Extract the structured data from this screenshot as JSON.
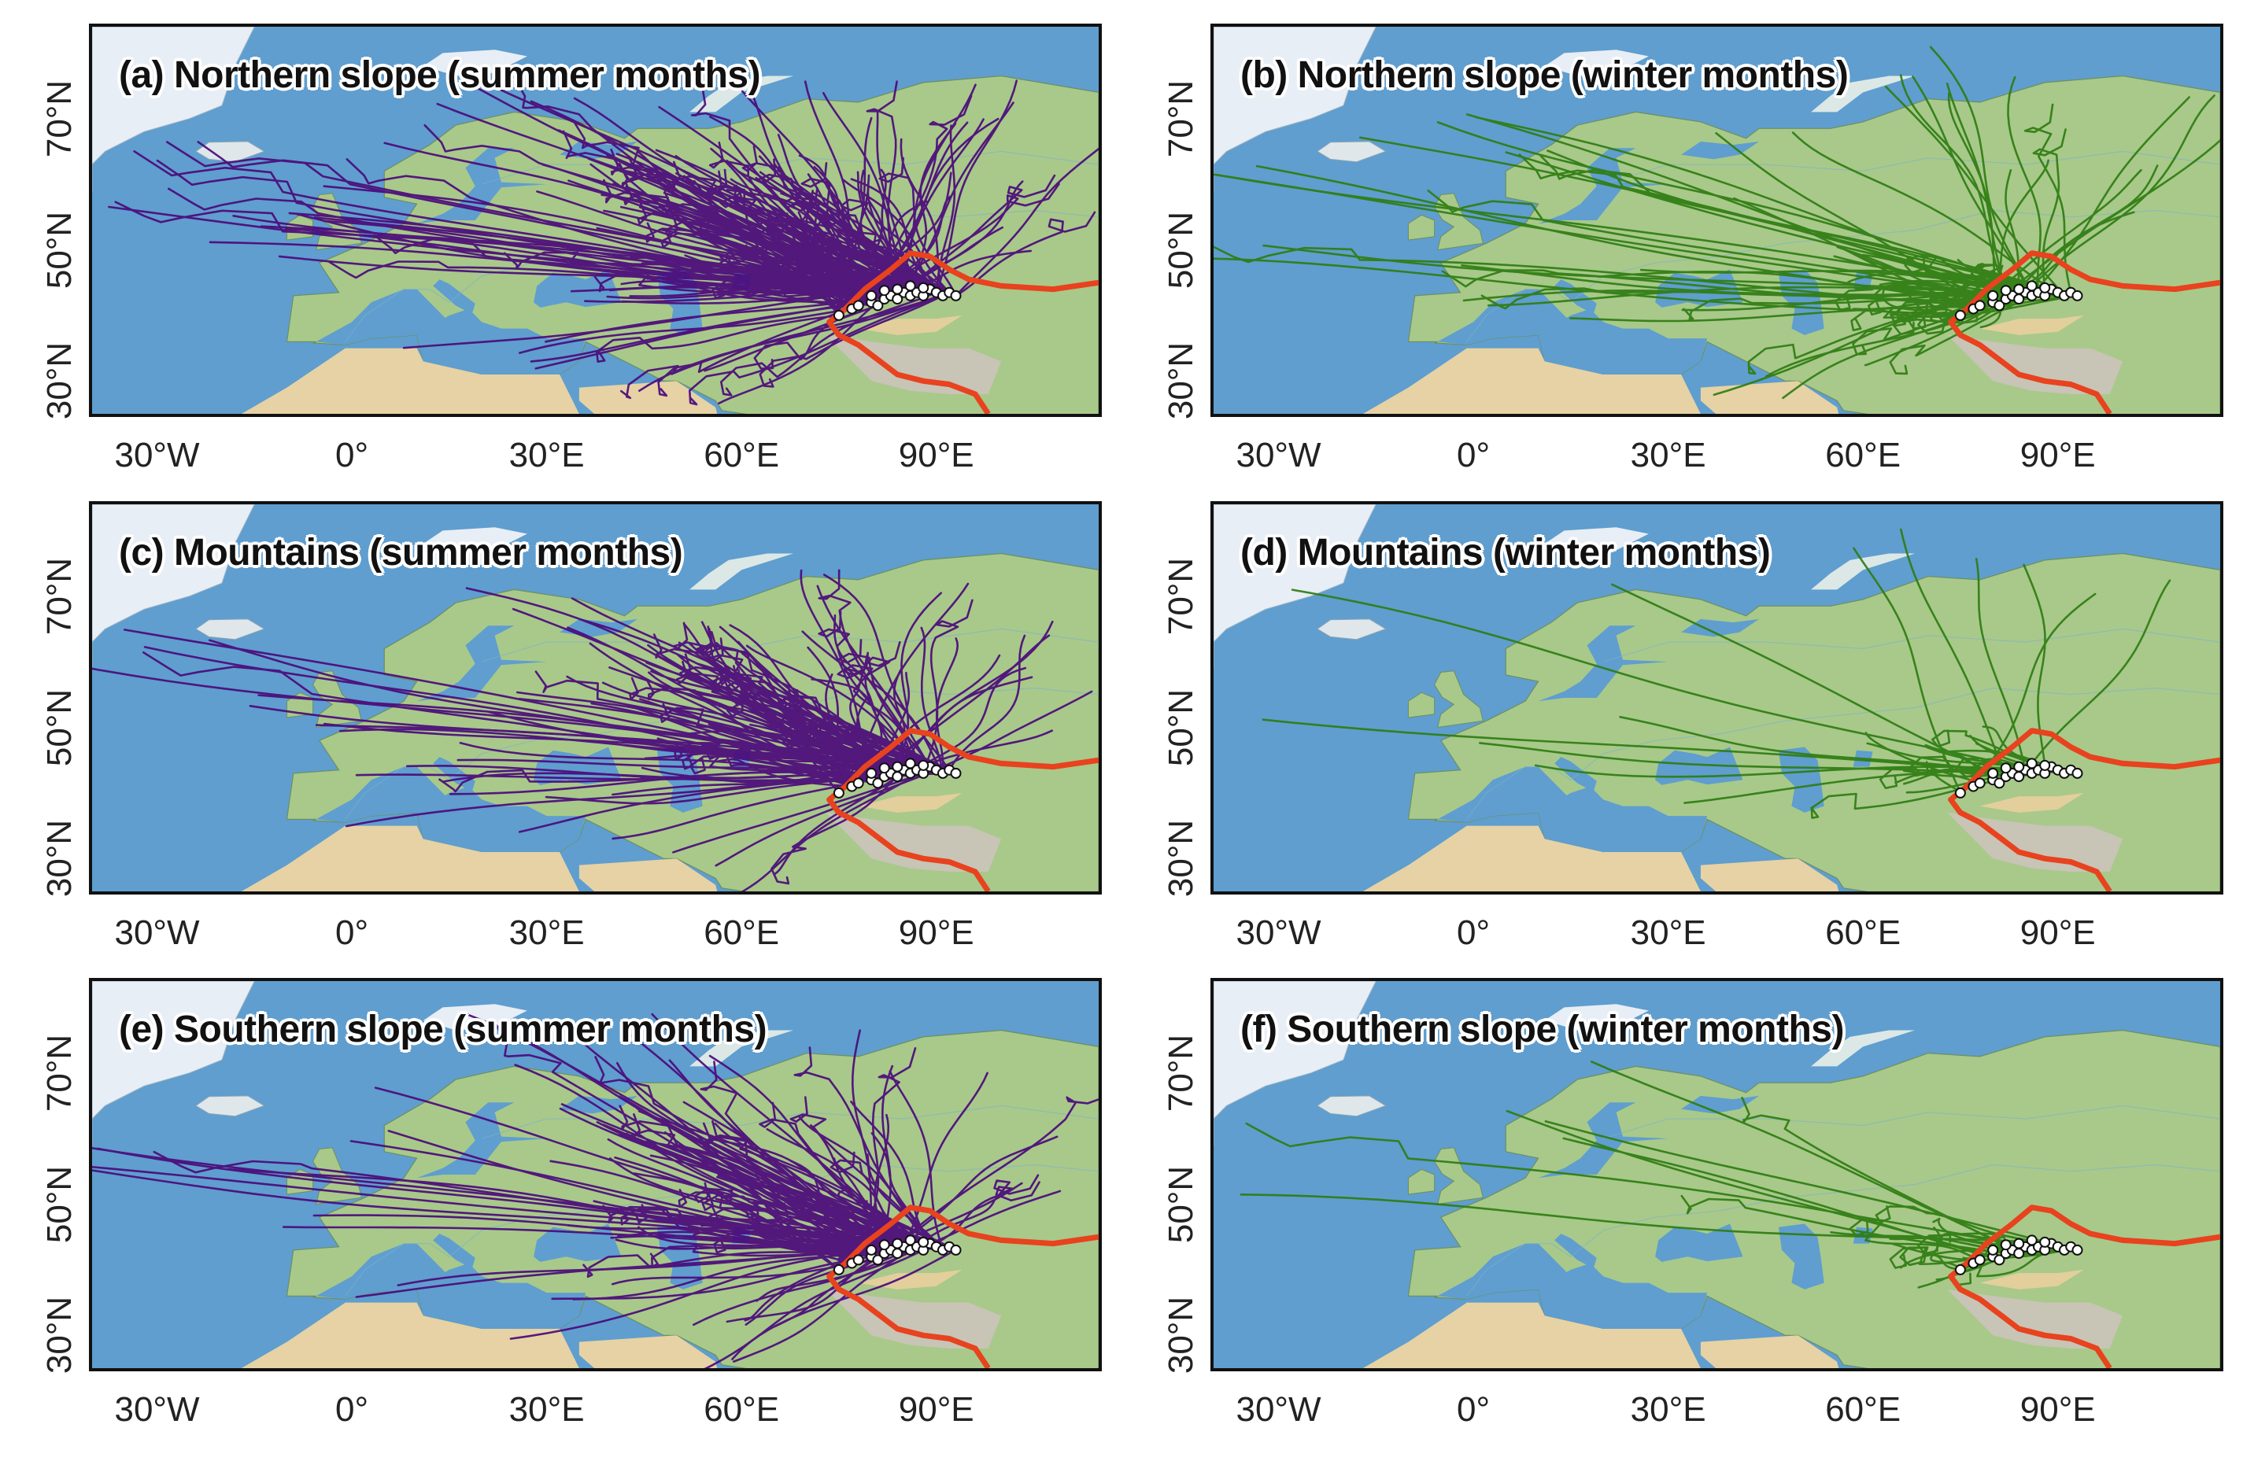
{
  "figure": {
    "x_ticks": [
      "30°W",
      "0°",
      "30°E",
      "60°E",
      "90°E"
    ],
    "x_tick_lon": [
      -30,
      0,
      30,
      60,
      90
    ],
    "y_ticks": [
      "70°N",
      "50°N",
      "30°N"
    ],
    "y_tick_lat": [
      70,
      50,
      30
    ],
    "extent": {
      "lon": [
        -40,
        115
      ],
      "lat": [
        25,
        84
      ]
    },
    "colors": {
      "summer": "#4b0a7a",
      "winter": "#2f7d12",
      "boundary": "#e8421e",
      "ocean": "#5f9ecf",
      "land": "#a8c98a",
      "desert": "#e6d2a4",
      "ice": "#e8eef5",
      "station_fill": "#ffffff",
      "station_stroke": "#111111"
    }
  },
  "panels": [
    {
      "id": "a",
      "title": "(a) Northern slope (summer months)",
      "season": "summer",
      "density": 230,
      "spread": 1.0
    },
    {
      "id": "b",
      "title": "(b) Northern slope (winter months)",
      "season": "winter",
      "density": 95,
      "spread": 0.8
    },
    {
      "id": "c",
      "title": "(c) Mountains (summer months)",
      "season": "summer",
      "density": 150,
      "spread": 0.95
    },
    {
      "id": "d",
      "title": "(d) Mountains (winter months)",
      "season": "winter",
      "density": 32,
      "spread": 0.85
    },
    {
      "id": "e",
      "title": "(e) Southern slope (summer months)",
      "season": "summer",
      "density": 140,
      "spread": 1.0
    },
    {
      "id": "f",
      "title": "(f) Southern slope (winter months)",
      "season": "winter",
      "density": 28,
      "spread": 0.7
    }
  ],
  "stations": [
    [
      75,
      40
    ],
    [
      77,
      41
    ],
    [
      78,
      41.5
    ],
    [
      80,
      42
    ],
    [
      81,
      41.5
    ],
    [
      82,
      42.5
    ],
    [
      83,
      43
    ],
    [
      84,
      42.5
    ],
    [
      85,
      43.5
    ],
    [
      86,
      43
    ],
    [
      87,
      43.5
    ],
    [
      88,
      43
    ],
    [
      89,
      44
    ],
    [
      90,
      43.5
    ],
    [
      91,
      43
    ],
    [
      92,
      43.5
    ],
    [
      93,
      43
    ],
    [
      84,
      44
    ],
    [
      82,
      43.8
    ],
    [
      86,
      44.5
    ],
    [
      88,
      44.2
    ],
    [
      80,
      43
    ]
  ],
  "boundary": [
    [
      115,
      45
    ],
    [
      108,
      44
    ],
    [
      100,
      44.5
    ],
    [
      95,
      45.5
    ],
    [
      92,
      47
    ],
    [
      89,
      49
    ],
    [
      86,
      49.5
    ],
    [
      83,
      47
    ],
    [
      81,
      45.5
    ],
    [
      79,
      44
    ],
    [
      76,
      41
    ],
    [
      73.5,
      39
    ],
    [
      75,
      37
    ],
    [
      78,
      35.5
    ],
    [
      80,
      34
    ],
    [
      84,
      31
    ],
    [
      88,
      30
    ],
    [
      92,
      29.5
    ],
    [
      96,
      28
    ],
    [
      98,
      25
    ]
  ]
}
